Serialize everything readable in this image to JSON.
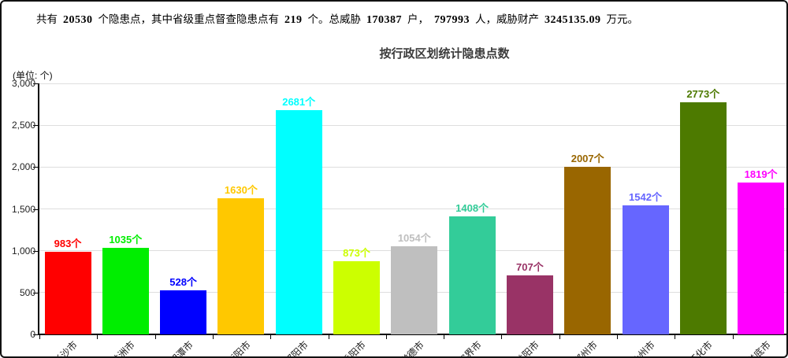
{
  "page": {
    "summary_segments": [
      {
        "text": "共有",
        "bold": false
      },
      {
        "text": "20530",
        "bold": true
      },
      {
        "text": "个隐患点，其中省级重点督查隐患点有",
        "bold": false
      },
      {
        "text": "219",
        "bold": true
      },
      {
        "text": "个。总威胁",
        "bold": false
      },
      {
        "text": "170387",
        "bold": true
      },
      {
        "text": "户，",
        "bold": false
      },
      {
        "text": "797993",
        "bold": true
      },
      {
        "text": "人，威胁财产",
        "bold": false
      },
      {
        "text": "3245135.09",
        "bold": true
      },
      {
        "text": "万元。",
        "bold": false
      }
    ]
  },
  "chart_data": {
    "type": "bar",
    "title": "按行政区划统计隐患点数",
    "unit_label": "(单位: 个)",
    "categories": [
      "长沙市",
      "株洲市",
      "湘潭市",
      "衡阳市",
      "邵阳市",
      "岳阳市",
      "常德市",
      "张家界市",
      "益阳市",
      "郴州市",
      "永州市",
      "怀化市",
      "娄底市"
    ],
    "values": [
      983,
      1035,
      528,
      1630,
      2681,
      873,
      1054,
      1408,
      707,
      2007,
      1542,
      2773,
      1819
    ],
    "value_label_suffix": "个",
    "bar_colors": [
      "#ff0000",
      "#00ee00",
      "#0000ff",
      "#ffc800",
      "#00ffff",
      "#ccff00",
      "#bfbfbf",
      "#33cc99",
      "#993366",
      "#996600",
      "#6666ff",
      "#4d7a00",
      "#ff00ff"
    ],
    "ylim": [
      0,
      3000
    ],
    "yticks": [
      {
        "value": 0,
        "label": "0"
      },
      {
        "value": 500,
        "label": "500"
      },
      {
        "value": 1000,
        "label": "1,000"
      },
      {
        "value": 1500,
        "label": "1,500"
      },
      {
        "value": 2000,
        "label": "2,000"
      },
      {
        "value": 2500,
        "label": "2,500"
      },
      {
        "value": 3000,
        "label": "3,000"
      }
    ],
    "grid": true,
    "legend": "none",
    "axis_color": "#000000",
    "grid_color": "#dedede",
    "category_label_rotation_deg": 45
  }
}
